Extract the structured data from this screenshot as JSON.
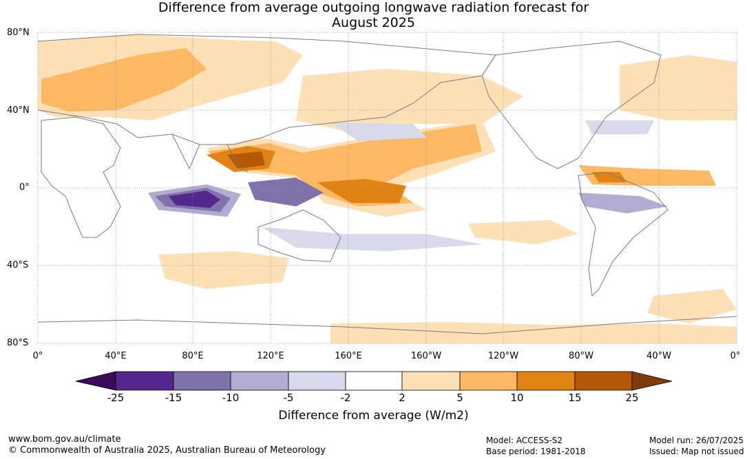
{
  "title": {
    "line1": "Difference from average outgoing longwave radiation forecast for",
    "line2": "August 2025"
  },
  "map": {
    "lat_labels": [
      "80°N",
      "40°N",
      "0°",
      "40°S",
      "80°S"
    ],
    "lon_labels": [
      "0°",
      "40°E",
      "80°E",
      "120°E",
      "160°E",
      "160°W",
      "120°W",
      "80°W",
      "40°W",
      "0°"
    ]
  },
  "colorbar": {
    "labels": [
      "-25",
      "-15",
      "-10",
      "-5",
      "-2",
      "2",
      "5",
      "10",
      "15",
      "25"
    ],
    "colors": [
      "#3b0a5c",
      "#54278f",
      "#8073ac",
      "#b2abd2",
      "#d8daeb",
      "#ffffff",
      "#fee0b6",
      "#fdb863",
      "#e08214",
      "#b35806",
      "#7f3b08"
    ],
    "title": "Difference from average (W/m2)"
  },
  "footer": {
    "url": "www.bom.gov.au/climate",
    "copyright": "© Commonwealth of Australia 2025, Australian Bureau of Meteorology",
    "model": "Model: ACCESS-S2",
    "base_period": "Base period: 1981-2018",
    "model_run": "Model run: 26/07/2025",
    "issued": "Issued: Map not issued"
  }
}
